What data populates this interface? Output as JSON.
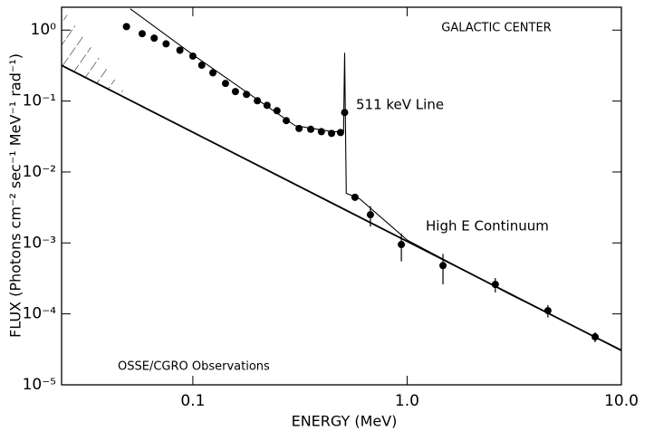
{
  "chart_data": {
    "type": "scatter",
    "x_label": "ENERGY (MeV)",
    "y_label": "FLUX  (Photons cm⁻² sec⁻¹ MeV⁻¹ rad⁻¹)",
    "log_x": true,
    "log_y": true,
    "xlim": [
      0.0244,
      10
    ],
    "ylim": [
      1e-05,
      2.1
    ],
    "xticks": [
      0.1,
      {
        "value": 1,
        "label": "1.0"
      },
      {
        "value": 10,
        "label": "10.0"
      }
    ],
    "yticks": [
      {
        "value": 1e-05,
        "label": "10⁻⁵"
      },
      {
        "value": 0.0001,
        "label": "10⁻⁴"
      },
      {
        "value": 0.001,
        "label": "10⁻³"
      },
      {
        "value": 0.01,
        "label": "10⁻²"
      },
      {
        "value": 0.1,
        "label": "10⁻¹"
      },
      {
        "value": 1,
        "label": "10⁰"
      }
    ],
    "annotations": [
      {
        "text": "GALACTIC CENTER",
        "color": "#222222"
      },
      {
        "text": "511 keV Line",
        "color": "#e8202a"
      },
      {
        "text": "High E Continuum",
        "color": "#1a9a4a"
      },
      {
        "text": "OSSE/CGRO  Observations",
        "color": "#2b8fd0"
      }
    ],
    "points": {
      "color": "#000000",
      "x": [
        0.049,
        0.058,
        0.066,
        0.075,
        0.087,
        0.1,
        0.11,
        0.124,
        0.142,
        0.158,
        0.178,
        0.2,
        0.222,
        0.247,
        0.273,
        0.313,
        0.355,
        0.398,
        0.444,
        0.489,
        0.511,
        0.571,
        0.674,
        0.94,
        1.47,
        2.58,
        4.54,
        7.54
      ],
      "y": [
        1.12,
        0.89,
        0.77,
        0.64,
        0.52,
        0.43,
        0.32,
        0.25,
        0.177,
        0.136,
        0.124,
        0.101,
        0.087,
        0.073,
        0.053,
        0.041,
        0.04,
        0.037,
        0.035,
        0.036,
        0.069,
        0.0044,
        0.0025,
        0.00095,
        0.00048,
        0.00026,
        0.000111,
        4.74e-05
      ],
      "errors": [
        0,
        0,
        0,
        0,
        0,
        0,
        0,
        0,
        0,
        0,
        0,
        0,
        0,
        0,
        0,
        0,
        0,
        0,
        0,
        0,
        0,
        0.0004,
        0.0008,
        0.0004,
        0.00022,
        6e-05,
        2.2e-05,
        7.5e-06
      ]
    },
    "model": {
      "color": "#000000",
      "x": [
        0.051,
        0.1,
        0.2,
        0.3,
        0.45,
        0.505,
        0.511,
        0.52,
        0.6,
        1.0,
        3,
        10
      ],
      "y": [
        2.0,
        0.45,
        0.105,
        0.045,
        0.037,
        0.037,
        0.48,
        0.005,
        0.0042,
        0.0011,
        0.00019,
        3.1e-05
      ]
    },
    "continuum": {
      "color": "#000000",
      "x": [
        0.0244,
        10
      ],
      "y": [
        0.318,
        3.05e-05
      ]
    }
  }
}
